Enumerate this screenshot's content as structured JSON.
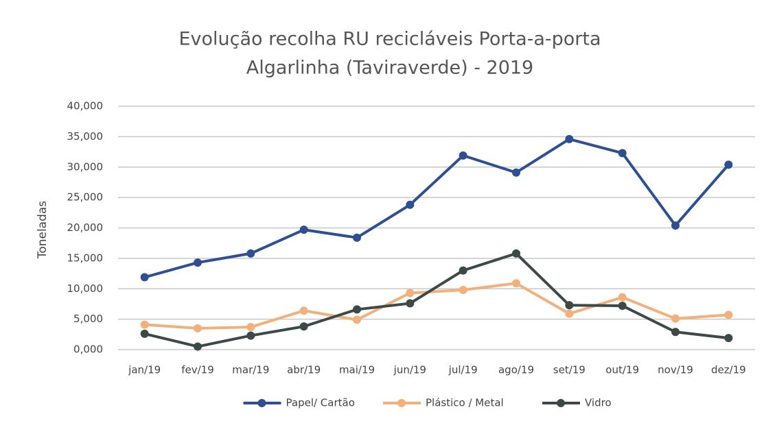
{
  "chart_data": {
    "type": "line",
    "title": "Evolução recolha RU recicláveis Porta-a-porta",
    "subtitle": "Algarlinha (Taviraverde) - 2019",
    "y_label": "Toneladas",
    "categories": [
      "jan/19",
      "fev/19",
      "mar/19",
      "abr/19",
      "mai/19",
      "jun/19",
      "jul/19",
      "ago/19",
      "set/19",
      "out/19",
      "nov/19",
      "dez/19"
    ],
    "series": [
      {
        "name": "Papel/ Cartão",
        "color": "#2e4f93",
        "values": [
          11.9,
          14.3,
          15.8,
          19.7,
          18.4,
          23.8,
          31.9,
          29.1,
          34.6,
          32.3,
          20.4,
          30.4
        ]
      },
      {
        "name": "Plástico / Metal",
        "color": "#f2b07a",
        "values": [
          4.1,
          3.5,
          3.7,
          6.4,
          4.9,
          9.3,
          9.8,
          10.9,
          5.9,
          8.6,
          5.1,
          5.7
        ]
      },
      {
        "name": "Vidro",
        "color": "#3b4a48",
        "values": [
          2.6,
          0.5,
          2.3,
          3.8,
          6.6,
          7.6,
          13.0,
          15.8,
          7.3,
          7.2,
          2.9,
          1.9
        ]
      }
    ],
    "ylim": [
      0,
      40
    ],
    "yticks": [
      {
        "value": 0,
        "label": "0,000"
      },
      {
        "value": 5,
        "label": "5,000"
      },
      {
        "value": 10,
        "label": "10,000"
      },
      {
        "value": 15,
        "label": "15,000"
      },
      {
        "value": 20,
        "label": "20,000"
      },
      {
        "value": 25,
        "label": "25,000"
      },
      {
        "value": 30,
        "label": "30,000"
      },
      {
        "value": 35,
        "label": "35,000"
      },
      {
        "value": 40,
        "label": "40,000"
      }
    ],
    "grid": true,
    "legend": "bottom"
  }
}
